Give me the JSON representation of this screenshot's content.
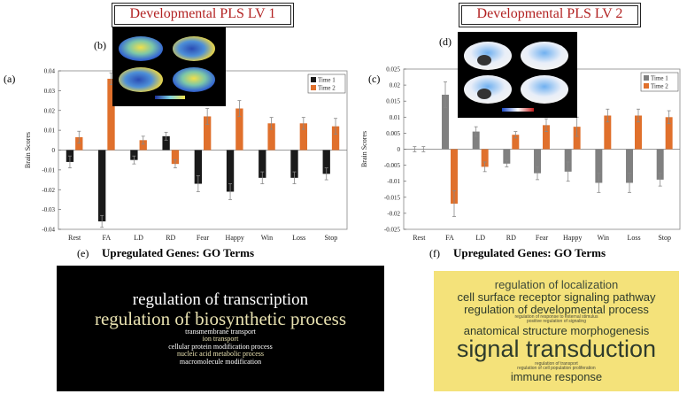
{
  "panels": {
    "a": "(a)",
    "b": "(b)",
    "c": "(c)",
    "d": "(d)",
    "e": "(e)",
    "f": "(f)"
  },
  "titles": {
    "lv1": "Developmental PLS LV 1",
    "lv2": "Developmental PLS LV 2"
  },
  "go_titles": {
    "e": "Upregulated Genes: GO Terms",
    "f": "Upregulated Genes: GO Terms"
  },
  "colors": {
    "time1_lv1": "#1a1a1a",
    "time1_lv2": "#808080",
    "time2": "#e0702c",
    "title_red": "#b22222",
    "cloud1_bg": "#000000",
    "cloud2_bg": "#f4e27a"
  },
  "chart_data": [
    {
      "type": "bar",
      "categories": [
        "Rest",
        "FA",
        "LD",
        "RD",
        "Fear",
        "Happy",
        "Win",
        "Loss",
        "Stop"
      ],
      "series": [
        {
          "name": "Time 1",
          "values": [
            -0.006,
            -0.036,
            -0.005,
            0.007,
            -0.017,
            -0.021,
            -0.014,
            -0.014,
            -0.012
          ],
          "errors": [
            0.003,
            0.003,
            0.002,
            0.002,
            0.004,
            0.004,
            0.003,
            0.003,
            0.003
          ]
        },
        {
          "name": "Time 2",
          "values": [
            0.0065,
            0.036,
            0.005,
            -0.007,
            0.017,
            0.021,
            0.0135,
            0.0135,
            0.012
          ],
          "errors": [
            0.003,
            0.003,
            0.002,
            0.002,
            0.004,
            0.004,
            0.003,
            0.003,
            0.004
          ]
        }
      ],
      "ylabel": "Brain Scores",
      "ylim": [
        -0.04,
        0.04
      ],
      "yticks": [
        "-0.04",
        "-0.03",
        "-0.02",
        "-0.01",
        "0",
        "0.01",
        "0.02",
        "0.03",
        "0.04"
      ],
      "legend": "top-right"
    },
    {
      "type": "bar",
      "categories": [
        "Rest",
        "FA",
        "LD",
        "RD",
        "Fear",
        "Happy",
        "Win",
        "Loss",
        "Stop"
      ],
      "series": [
        {
          "name": "Time 1",
          "values": [
            0,
            0.017,
            0.0055,
            -0.0045,
            -0.0075,
            -0.007,
            -0.0105,
            -0.0105,
            -0.0095
          ],
          "errors": [
            0.0008,
            0.004,
            0.0015,
            0.001,
            0.002,
            0.003,
            0.003,
            0.003,
            0.002
          ]
        },
        {
          "name": "Time 2",
          "values": [
            0,
            -0.017,
            -0.0055,
            0.0045,
            0.0075,
            0.007,
            0.0105,
            0.0105,
            0.01
          ],
          "errors": [
            0.0008,
            0.004,
            0.0015,
            0.001,
            0.002,
            0.003,
            0.002,
            0.002,
            0.002
          ]
        }
      ],
      "ylabel": "Brain Scores",
      "ylim": [
        -0.025,
        0.025
      ],
      "yticks": [
        "-0.025",
        "-0.02",
        "-0.015",
        "-0.01",
        "-0.005",
        "0",
        "0.005",
        "0.01",
        "0.015",
        "0.02",
        "0.025"
      ],
      "legend": "top-right"
    }
  ],
  "cloud_e": [
    {
      "text": "regulation of transcription",
      "color": "#ffffff",
      "size": 19
    },
    {
      "text": "regulation of biosynthetic process",
      "color": "#e8e1b0",
      "size": 21
    },
    {
      "text": "transmembrane transport",
      "color": "#ffffff",
      "size": 8
    },
    {
      "text": "ion transport",
      "color": "#e8e1b0",
      "size": 8
    },
    {
      "text": "cellular protein modification process",
      "color": "#ffffff",
      "size": 8
    },
    {
      "text": "nucleic acid metabolic process",
      "color": "#e8e1b0",
      "size": 8
    },
    {
      "text": "macromolecule modification",
      "color": "#ffffff",
      "size": 8
    }
  ],
  "cloud_f": [
    {
      "text": "regulation of localization",
      "color": "#3e4a3a",
      "size": 13
    },
    {
      "text": "cell surface receptor signaling pathway",
      "color": "#2e3b2c",
      "size": 13
    },
    {
      "text": "regulation of developmental process",
      "color": "#2e3b2c",
      "size": 13
    },
    {
      "text": "regulation of response to external stimulus",
      "color": "#4a4a3a",
      "size": 5
    },
    {
      "text": "positive regulation of signaling",
      "color": "#4a4a3a",
      "size": 5
    },
    {
      "text": "anatomical structure morphogenesis",
      "color": "#2e3b2c",
      "size": 13
    },
    {
      "text": "signal transduction",
      "color": "#2e3b2c",
      "size": 27
    },
    {
      "text": "regulation of transport",
      "color": "#4a4a3a",
      "size": 5
    },
    {
      "text": "regulation of cell population proliferation",
      "color": "#4a4a3a",
      "size": 5
    },
    {
      "text": "immune response",
      "color": "#2e3b2c",
      "size": 13
    }
  ]
}
